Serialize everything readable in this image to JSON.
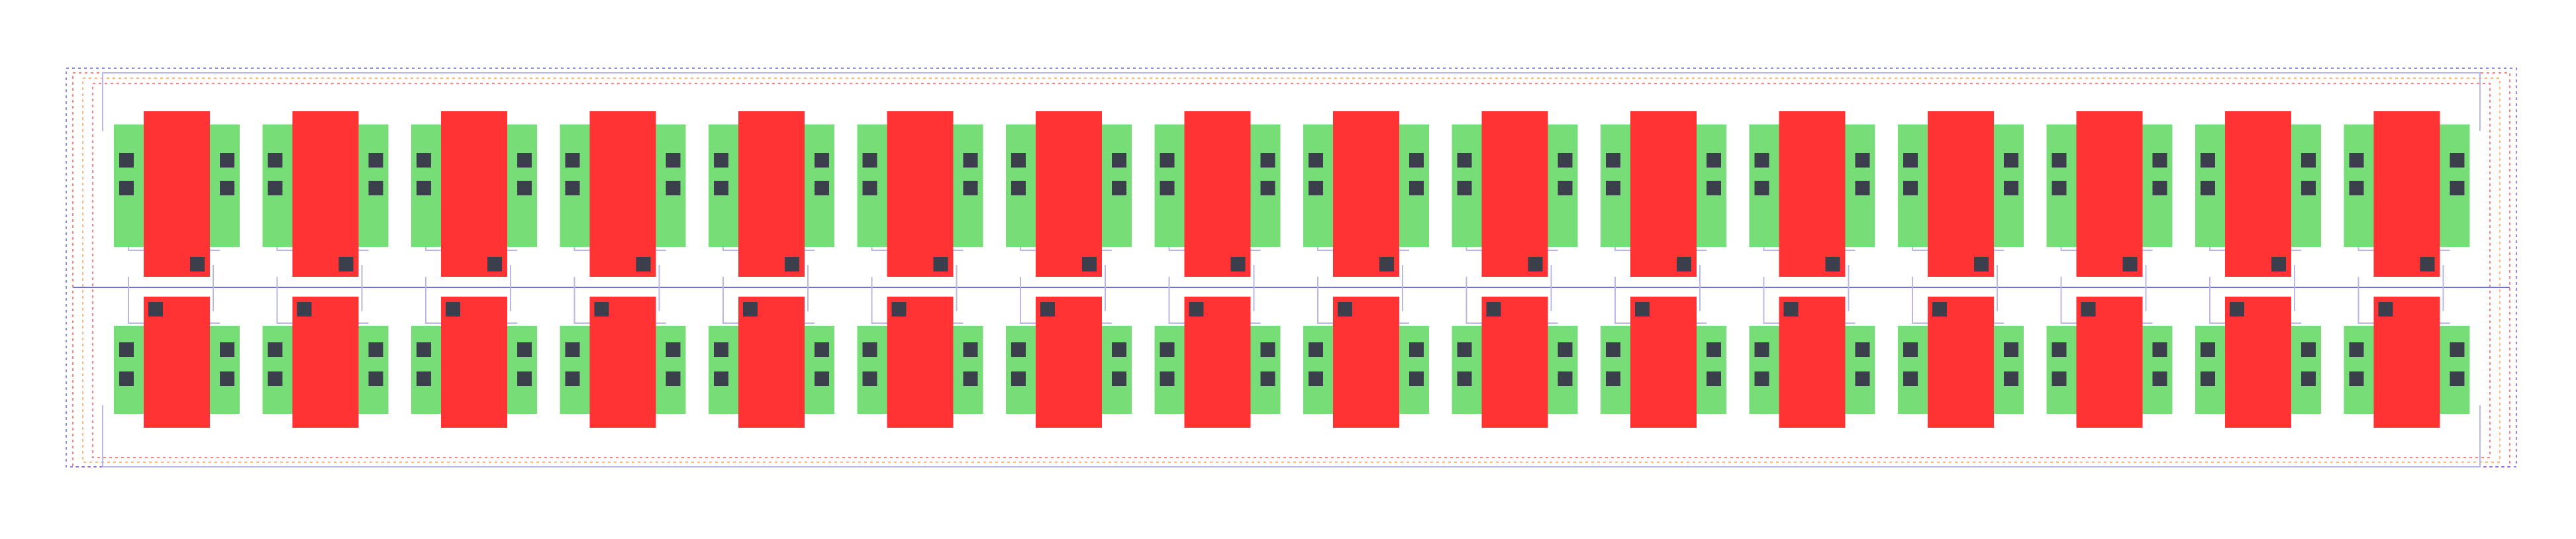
{
  "layout": {
    "rows": 2,
    "columns": 16,
    "colors": {
      "background": "#ffffff",
      "diffusion": "#77dd77",
      "poly": "#ff3333",
      "contact": "#3a3f4b",
      "metal_wire": "#b8b8e8",
      "boundary_red": "#ff6b6b",
      "boundary_orange": "#ffaa66",
      "boundary_blue": "#7777ee",
      "divider": "#6f6fe0"
    }
  }
}
